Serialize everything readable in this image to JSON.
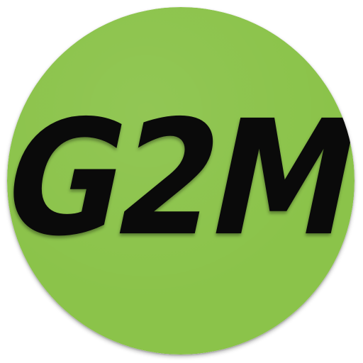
{
  "icon": {
    "text": "G2M",
    "background_color": "#8bc34a",
    "text_color": "#0a0a0a"
  }
}
